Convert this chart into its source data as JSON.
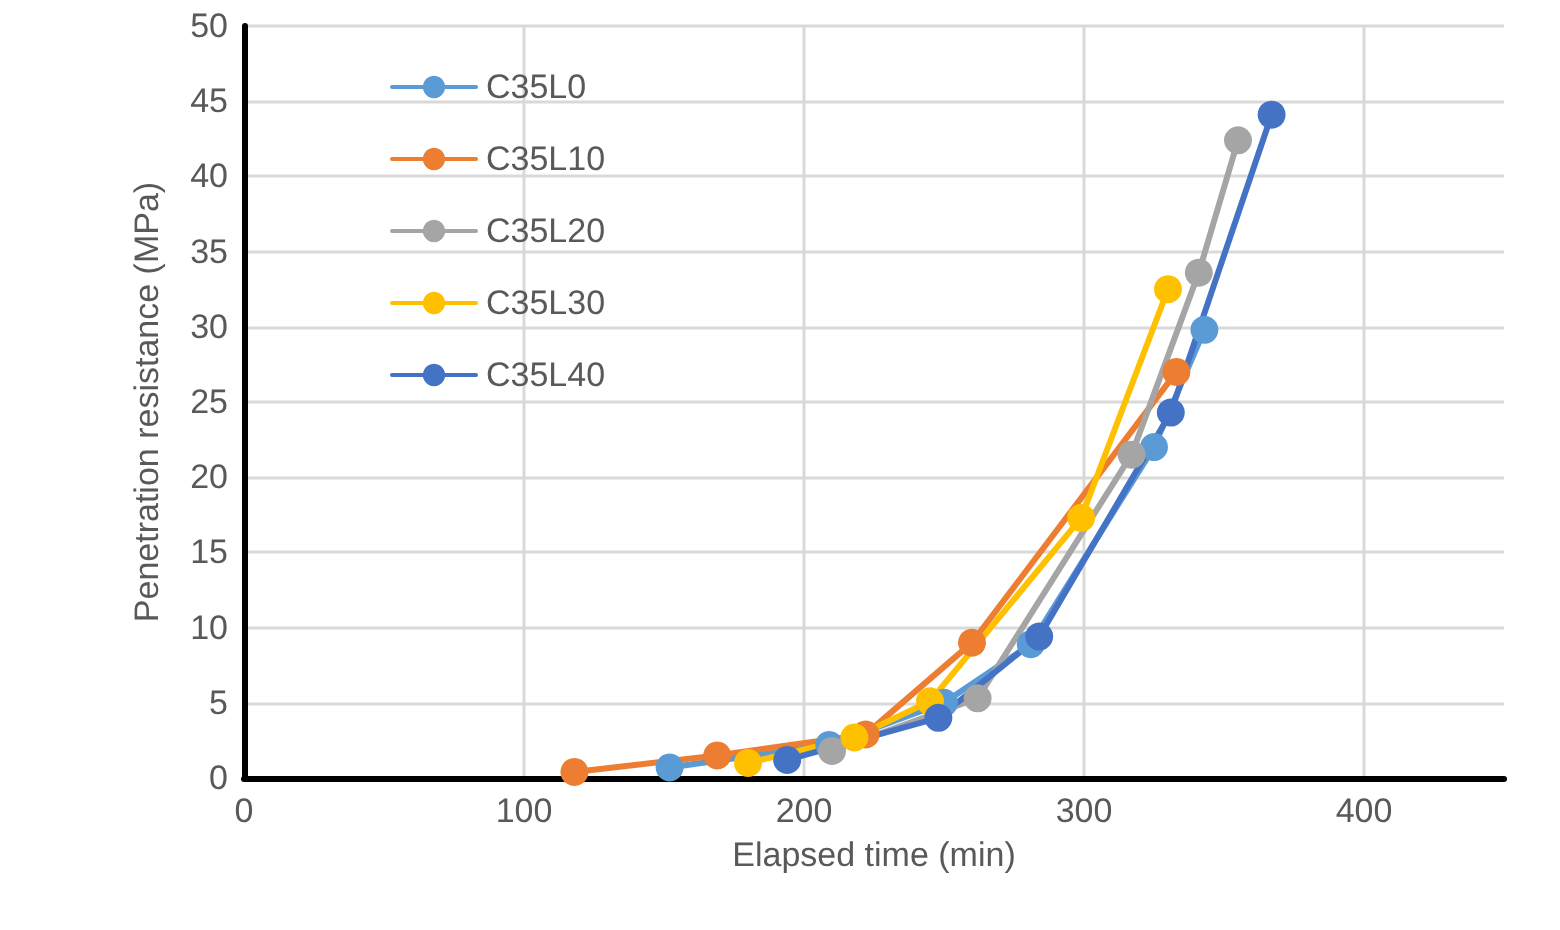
{
  "chart_data": {
    "type": "line",
    "xlabel": "Elapsed time (min)",
    "ylabel": "Penetration resistance (MPa)",
    "xlim": [
      0,
      450
    ],
    "xticks": [
      0,
      100,
      200,
      300,
      400
    ],
    "ylim": [
      0,
      50
    ],
    "yticks": [
      0,
      5,
      10,
      15,
      20,
      25,
      30,
      35,
      40,
      45,
      50
    ],
    "grid": true,
    "legend": "top left",
    "marker": "circle",
    "line_style": "solid",
    "series": [
      {
        "name": "C35L0",
        "color": "#5b9bd5",
        "x": [
          152,
          209,
          250,
          281,
          325,
          343
        ],
        "values": [
          0.7,
          2.2,
          5,
          8.9,
          22,
          29.8
        ]
      },
      {
        "name": "C35L10",
        "color": "#ed7d31",
        "x": [
          118,
          169,
          222,
          260,
          333
        ],
        "values": [
          0.4,
          1.5,
          2.9,
          9,
          27
        ]
      },
      {
        "name": "C35L20",
        "color": "#a5a5a5",
        "x": [
          210,
          262,
          317,
          341,
          355
        ],
        "values": [
          1.8,
          5.3,
          21.5,
          33.6,
          42.4
        ]
      },
      {
        "name": "C35L30",
        "color": "#ffc000",
        "x": [
          180,
          218,
          245,
          299,
          330
        ],
        "values": [
          1,
          2.7,
          5.1,
          17.3,
          32.5
        ]
      },
      {
        "name": "C35L40",
        "color": "#4472c4",
        "x": [
          194,
          248,
          284,
          331,
          367
        ],
        "values": [
          1.2,
          4,
          9.4,
          24.3,
          44.1
        ]
      }
    ]
  }
}
